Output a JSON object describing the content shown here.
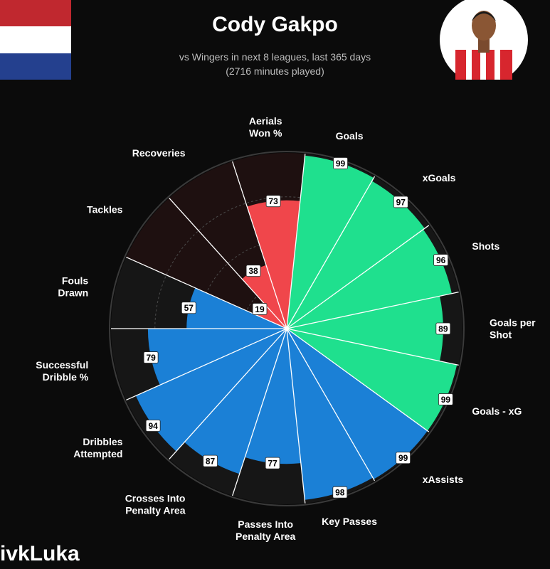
{
  "header": {
    "title": "Cody Gakpo",
    "subtitle_line1": "vs Wingers in next 8 leagues, last 365 days",
    "subtitle_line2": "(2716 minutes played)"
  },
  "watermark": "ivkLuka",
  "icons": {
    "flag": "netherlands-flag-icon",
    "photo": "player-photo"
  },
  "colors": {
    "attacking": "#1fe08e",
    "possession": "#1b80d6",
    "defending": "#f0464b",
    "background_track": "#161616",
    "defending_track": "#1e1010"
  },
  "chart_data": {
    "type": "polar-bar",
    "title": "Cody Gakpo",
    "start_angle_deg": 72,
    "scale": [
      0,
      100
    ],
    "categories": [
      {
        "label": [
          "Goals"
        ],
        "value": 99,
        "group": "attacking"
      },
      {
        "label": [
          "xGoals"
        ],
        "value": 97,
        "group": "attacking"
      },
      {
        "label": [
          "Shots"
        ],
        "value": 96,
        "group": "attacking"
      },
      {
        "label": [
          "Goals per",
          "Shot"
        ],
        "value": 89,
        "group": "attacking"
      },
      {
        "label": [
          "Goals - xG"
        ],
        "value": 99,
        "group": "attacking"
      },
      {
        "label": [
          "xAssists"
        ],
        "value": 99,
        "group": "possession"
      },
      {
        "label": [
          "Key Passes"
        ],
        "value": 98,
        "group": "possession"
      },
      {
        "label": [
          "Passes Into",
          "Penalty Area"
        ],
        "value": 77,
        "group": "possession"
      },
      {
        "label": [
          "Crosses Into",
          "Penalty Area"
        ],
        "value": 87,
        "group": "possession"
      },
      {
        "label": [
          "Dribbles",
          "Attempted"
        ],
        "value": 94,
        "group": "possession"
      },
      {
        "label": [
          "Successful",
          "Dribble %"
        ],
        "value": 79,
        "group": "possession"
      },
      {
        "label": [
          "Fouls",
          "Drawn"
        ],
        "value": 57,
        "group": "possession"
      },
      {
        "label": [
          "Tackles"
        ],
        "value": 19,
        "group": "defending"
      },
      {
        "label": [
          "Recoveries"
        ],
        "value": 38,
        "group": "defending"
      },
      {
        "label": [
          "Aerials",
          "Won %"
        ],
        "value": 73,
        "group": "defending"
      }
    ]
  }
}
